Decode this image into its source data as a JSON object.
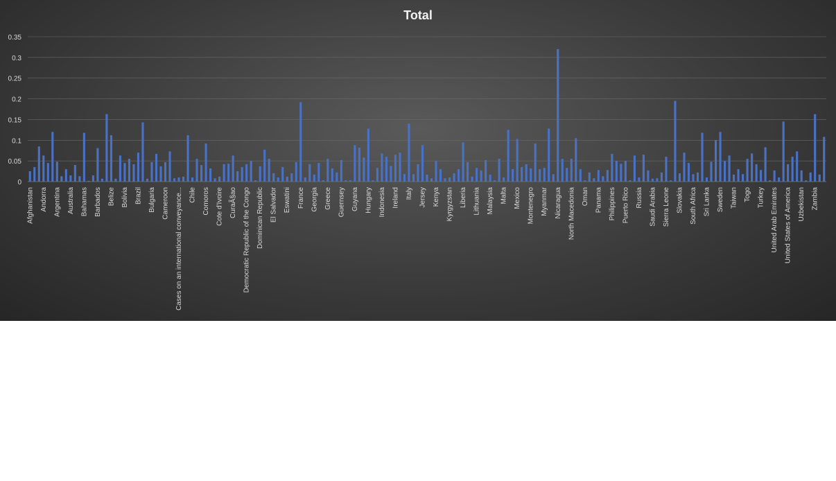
{
  "chart_data": {
    "type": "bar",
    "title": "Total",
    "xlabel": "",
    "ylabel": "",
    "ylim": [
      0,
      0.35
    ],
    "yticks": [
      "0",
      "0.05",
      "0.1",
      "0.15",
      "0.2",
      "0.25",
      "0.3",
      "0.35"
    ],
    "grid": true,
    "legend": "none",
    "colors": {
      "bar": "#4a72c4",
      "grid": "#6a6a6a",
      "text": "#d9d9d9",
      "title": "#f2f2f2"
    },
    "label_every": 3,
    "categories": [
      "Afghanistan",
      "",
      "",
      "Andorra",
      "",
      "",
      "Argentina",
      "",
      "",
      "Australia",
      "",
      "",
      "Bahamas",
      "",
      "",
      "Barbados",
      "",
      "",
      "Belize",
      "",
      "",
      "Bolivia",
      "",
      "",
      "Brazil",
      "",
      "",
      "Bulgaria",
      "",
      "",
      "Cameroon",
      "",
      "",
      "Cases on an international conveyance...",
      "",
      "",
      "Chile",
      "",
      "",
      "Comoros",
      "",
      "",
      "Cote d'Ivoire",
      "",
      "",
      "CuraÃ§ao",
      "",
      "",
      "Democratic Republic of the Congo",
      "",
      "",
      "Dominican Republic",
      "",
      "",
      "El Salvador",
      "",
      "",
      "Eswatini",
      "",
      "",
      "France",
      "",
      "",
      "Georgia",
      "",
      "",
      "Greece",
      "",
      "",
      "Guernsey",
      "",
      "",
      "Guyana",
      "",
      "",
      "Hungary",
      "",
      "",
      "Indonesia",
      "",
      "",
      "Ireland",
      "",
      "",
      "Italy",
      "",
      "",
      "Jersey",
      "",
      "",
      "Kenya",
      "",
      "",
      "Kyrgyzstan",
      "",
      "",
      "Liberia",
      "",
      "",
      "Lithuania",
      "",
      "",
      "Malaysia",
      "",
      "",
      "Malta",
      "",
      "",
      "Mexico",
      "",
      "",
      "Montenegro",
      "",
      "",
      "Myanmar",
      "",
      "",
      "Nicaragua",
      "",
      "",
      "North Macedonia",
      "",
      "",
      "Oman",
      "",
      "",
      "Panama",
      "",
      "",
      "Philippines",
      "",
      "",
      "Puerto Rico",
      "",
      "",
      "Russia",
      "",
      "",
      "Saudi Arabia",
      "",
      "",
      "Sierra Leone",
      "",
      "",
      "Slovakia",
      "",
      "",
      "South Africa",
      "",
      "",
      "Sri Lanka",
      "",
      "",
      "Sweden",
      "",
      "",
      "Taiwan",
      "",
      "",
      "Togo",
      "",
      "",
      "Turkey",
      "",
      "",
      "United Arab Emirates",
      "",
      "",
      "United States of America",
      "",
      "",
      "Uzbekistan",
      "",
      "",
      "Zambia",
      "",
      ""
    ],
    "values": [
      0.025,
      0.035,
      0.085,
      0.063,
      0.045,
      0.12,
      0.048,
      0.013,
      0.03,
      0.015,
      0.04,
      0.013,
      0.118,
      0.002,
      0.015,
      0.081,
      0.007,
      0.163,
      0.112,
      0.007,
      0.063,
      0.045,
      0.055,
      0.042,
      0.07,
      0.143,
      0.007,
      0.047,
      0.067,
      0.037,
      0.047,
      0.073,
      0.008,
      0.01,
      0.012,
      0.112,
      0.01,
      0.055,
      0.04,
      0.092,
      0.032,
      0.008,
      0.012,
      0.042,
      0.043,
      0.063,
      0.025,
      0.035,
      0.042,
      0.05,
      0.003,
      0.037,
      0.077,
      0.055,
      0.02,
      0.01,
      0.035,
      0.012,
      0.02,
      0.047,
      0.192,
      0.01,
      0.042,
      0.017,
      0.045,
      0.003,
      0.055,
      0.032,
      0.022,
      0.052,
      0.003,
      0.003,
      0.088,
      0.082,
      0.058,
      0.128,
      0.003,
      0.033,
      0.068,
      0.06,
      0.038,
      0.065,
      0.07,
      0.018,
      0.14,
      0.018,
      0.042,
      0.088,
      0.017,
      0.008,
      0.05,
      0.03,
      0.008,
      0.01,
      0.02,
      0.03,
      0.095,
      0.047,
      0.012,
      0.033,
      0.027,
      0.052,
      0.017,
      0.003,
      0.055,
      0.01,
      0.125,
      0.03,
      0.103,
      0.035,
      0.042,
      0.032,
      0.092,
      0.03,
      0.033,
      0.128,
      0.018,
      0.32,
      0.055,
      0.033,
      0.055,
      0.105,
      0.03,
      0.003,
      0.022,
      0.008,
      0.028,
      0.013,
      0.028,
      0.067,
      0.05,
      0.043,
      0.05,
      0.003,
      0.063,
      0.01,
      0.065,
      0.027,
      0.007,
      0.008,
      0.022,
      0.06,
      0.003,
      0.195,
      0.02,
      0.07,
      0.045,
      0.018,
      0.022,
      0.118,
      0.01,
      0.048,
      0.1,
      0.12,
      0.05,
      0.063,
      0.017,
      0.03,
      0.018,
      0.055,
      0.068,
      0.042,
      0.028,
      0.083,
      0.003,
      0.027,
      0.01,
      0.145,
      0.042,
      0.06,
      0.073,
      0.027,
      0.003,
      0.022,
      0.163,
      0.017,
      0.108
    ]
  }
}
